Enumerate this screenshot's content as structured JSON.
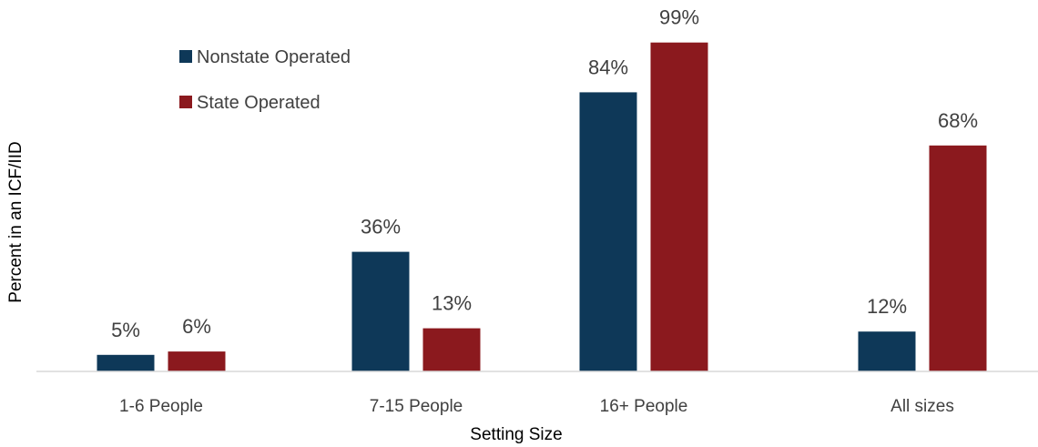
{
  "chart_data": {
    "type": "bar",
    "title": "",
    "xlabel": "Setting Size",
    "ylabel": "Percent in an ICF/IID",
    "categories": [
      "1-6 People",
      "7-15 People",
      "16+ People",
      "All sizes"
    ],
    "series": [
      {
        "name": "Nonstate Operated",
        "color": "#0e3858",
        "values": [
          5,
          36,
          84,
          12
        ],
        "labels": [
          "5%",
          "36%",
          "84%",
          "12%"
        ]
      },
      {
        "name": "State Operated",
        "color": "#8b191e",
        "values": [
          6,
          13,
          99,
          68
        ],
        "labels": [
          "6%",
          "13%",
          "99%",
          "68%"
        ]
      }
    ],
    "ylim": [
      0,
      100
    ],
    "grid": false,
    "legend_position": "top-left"
  }
}
